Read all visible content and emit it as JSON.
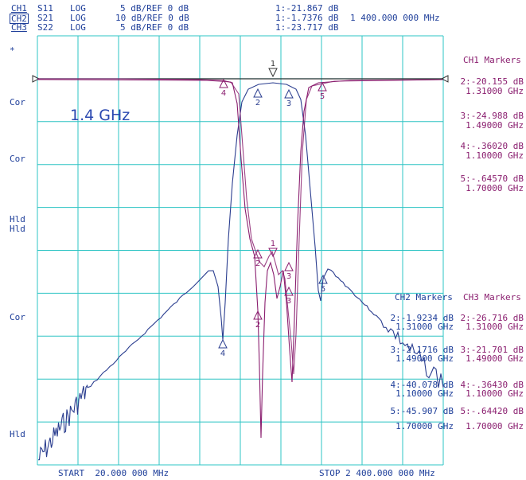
{
  "header": {
    "rows": [
      {
        "ch": "CH1",
        "param": "S11",
        "fmt": "LOG",
        "scale": "5 dB/REF 0 dB",
        "marker": "1:-21.867 dB",
        "extra": ""
      },
      {
        "ch": "CH2",
        "param": "S21",
        "fmt": "LOG",
        "scale": "10 dB/REF 0 dB",
        "marker": "1:-1.7376 dB",
        "extra": "1 400.000 000 MHz"
      },
      {
        "ch": "CH3",
        "param": "S22",
        "fmt": "LOG",
        "scale": "5 dB/REF 0 dB",
        "marker": "1:-23.717 dB",
        "extra": ""
      }
    ]
  },
  "left_labels": [
    "*",
    "Cor",
    "Cor",
    "Hld",
    "Hld",
    "Cor",
    "Hld"
  ],
  "annotation": "1.4 GHz",
  "footer": {
    "start": "START  20.000 000 MHz",
    "stop": "STOP 2 400.000 000 MHz"
  },
  "ch1_markers": {
    "title": "CH1 Markers",
    "items": [
      {
        "val": "2:-20.155 dB",
        "freq": "1.31000 GHz"
      },
      {
        "val": "3:-24.988 dB",
        "freq": "1.49000 GHz"
      },
      {
        "val": "4:-.36020 dB",
        "freq": "1.10000 GHz"
      },
      {
        "val": "5:-.64570 dB",
        "freq": "1.70000 GHz"
      }
    ]
  },
  "ch2_markers": {
    "title": "CH2 Markers",
    "items": [
      {
        "val": "2:-1.9234 dB",
        "freq": "1.31000 GHz"
      },
      {
        "val": "3:-2.1716 dB",
        "freq": "1.49000 GHz"
      },
      {
        "val": "4:-40.078 dB",
        "freq": "1.10000 GHz"
      },
      {
        "val": "5:-45.907 dB",
        "freq": "1.70000 GHz"
      }
    ]
  },
  "ch3_markers": {
    "title": "CH3 Markers",
    "items": [
      {
        "val": "2:-26.716 dB",
        "freq": "1.31000 GHz"
      },
      {
        "val": "3:-21.701 dB",
        "freq": "1.49000 GHz"
      },
      {
        "val": "4:-.36430 dB",
        "freq": "1.10000 GHz"
      },
      {
        "val": "5:-.64420 dB",
        "freq": "1.70000 GHz"
      }
    ]
  },
  "trace_markers": [
    "1",
    "2",
    "3",
    "4",
    "5"
  ],
  "colors": {
    "grid": "#2ec4c4",
    "s21": "#2a3d8f",
    "s11": "#8a1e6f",
    "s22": "#8a1e6f",
    "ref": "#333333"
  }
}
